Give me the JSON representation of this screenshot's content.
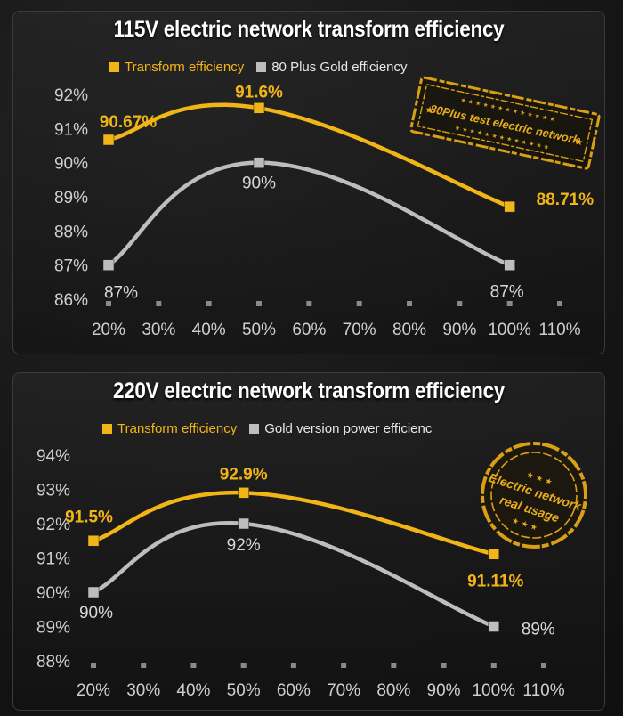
{
  "chart_data": [
    {
      "type": "line",
      "title": "115V electric network transform efficiency",
      "xlabel": "",
      "ylabel": "",
      "x_ticks": [
        "20%",
        "30%",
        "40%",
        "50%",
        "60%",
        "70%",
        "80%",
        "90%",
        "100%",
        "110%"
      ],
      "y_ticks": [
        "86%",
        "87%",
        "88%",
        "89%",
        "90%",
        "91%",
        "92%"
      ],
      "ylim": [
        86,
        92
      ],
      "xlim": [
        20,
        110
      ],
      "grid": false,
      "legend_position": "top-left",
      "series": [
        {
          "name": "Transform efficiency",
          "color": "#f2b517",
          "x": [
            20,
            50,
            100
          ],
          "y": [
            90.67,
            91.6,
            88.71
          ],
          "labels": [
            "90.67%",
            "91.6%",
            "88.71%"
          ]
        },
        {
          "name": "80 Plus Gold efficiency",
          "color": "#bdbdbd",
          "x": [
            20,
            50,
            100
          ],
          "y": [
            87,
            90,
            87
          ],
          "labels": [
            "87%",
            "90%",
            "87%"
          ]
        }
      ],
      "stamp_text": "80Plus test electric network"
    },
    {
      "type": "line",
      "title": "220V electric network transform efficiency",
      "xlabel": "",
      "ylabel": "",
      "x_ticks": [
        "20%",
        "30%",
        "40%",
        "50%",
        "60%",
        "70%",
        "80%",
        "90%",
        "100%",
        "110%"
      ],
      "y_ticks": [
        "88%",
        "89%",
        "90%",
        "91%",
        "92%",
        "93%",
        "94%"
      ],
      "ylim": [
        88,
        94
      ],
      "xlim": [
        20,
        110
      ],
      "grid": false,
      "legend_position": "top-left",
      "series": [
        {
          "name": "Transform efficiency",
          "color": "#f2b517",
          "x": [
            20,
            50,
            100
          ],
          "y": [
            91.5,
            92.9,
            91.11
          ],
          "labels": [
            "91.5%",
            "92.9%",
            "91.11%"
          ]
        },
        {
          "name": "Gold version power efficienc",
          "color": "#bdbdbd",
          "x": [
            20,
            50,
            100
          ],
          "y": [
            90,
            92,
            89
          ],
          "labels": [
            "90%",
            "92%",
            "89%"
          ]
        }
      ],
      "stamp_text_line1": "Electric network",
      "stamp_text_line2": "real usage"
    }
  ],
  "colors": {
    "accent": "#f2b517",
    "gray_series": "#bdbdbd",
    "axis_text": "#cfcfcf",
    "background": "#151515"
  }
}
